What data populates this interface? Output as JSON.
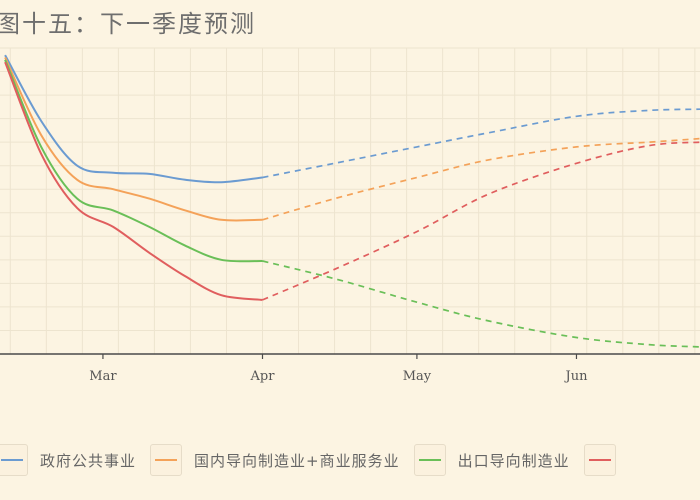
{
  "title": "图十五：下一季度预测",
  "colors": {
    "background": "#fcf4e2",
    "grid": "#ede4cf",
    "axis": "#4a4a4a"
  },
  "chart_data": {
    "type": "line",
    "title": "图十五：下一季度预测",
    "xlabel": "",
    "ylabel": "",
    "x_ticks": [
      "Mar",
      "Apr",
      "May",
      "Jun"
    ],
    "x_domain": [
      "2020-02-10",
      "2020-06-25"
    ],
    "forecast_start": "2020-04-01",
    "grid": true,
    "legend_position": "bottom",
    "x_dates": [
      "2020-02-11",
      "2020-02-18",
      "2020-02-25",
      "2020-03-03",
      "2020-03-10",
      "2020-03-17",
      "2020-03-24",
      "2020-04-01",
      "2020-04-15",
      "2020-05-01",
      "2020-05-15",
      "2020-06-01",
      "2020-06-15",
      "2020-06-25"
    ],
    "series": [
      {
        "name": "政府公共事业",
        "color": "#6b9bd1",
        "values": [
          97,
          69,
          50,
          47,
          46.5,
          44,
          43,
          45,
          51,
          58,
          64,
          71,
          73.5,
          74
        ]
      },
      {
        "name": "国内导向制造业+商业服务业",
        "color": "#f4a259",
        "values": [
          96,
          63,
          44,
          40,
          36,
          31,
          27,
          27,
          36,
          45,
          52.5,
          58,
          60,
          61.5
        ]
      },
      {
        "name": "出口导向制造业",
        "color": "#6abf58",
        "values": [
          95,
          58,
          36,
          31,
          24,
          16,
          10,
          9.5,
          2,
          -8,
          -16,
          -23,
          -26,
          -27
        ]
      },
      {
        "name": "",
        "color": "#e05e5e",
        "values": [
          94,
          55,
          32,
          24,
          13,
          3,
          -5,
          -7,
          6,
          22,
          38,
          51,
          58.5,
          60
        ]
      }
    ],
    "legend": [
      "政府公共事业",
      "国内导向制造业+商业服务业",
      "出口导向制造业",
      ""
    ]
  }
}
